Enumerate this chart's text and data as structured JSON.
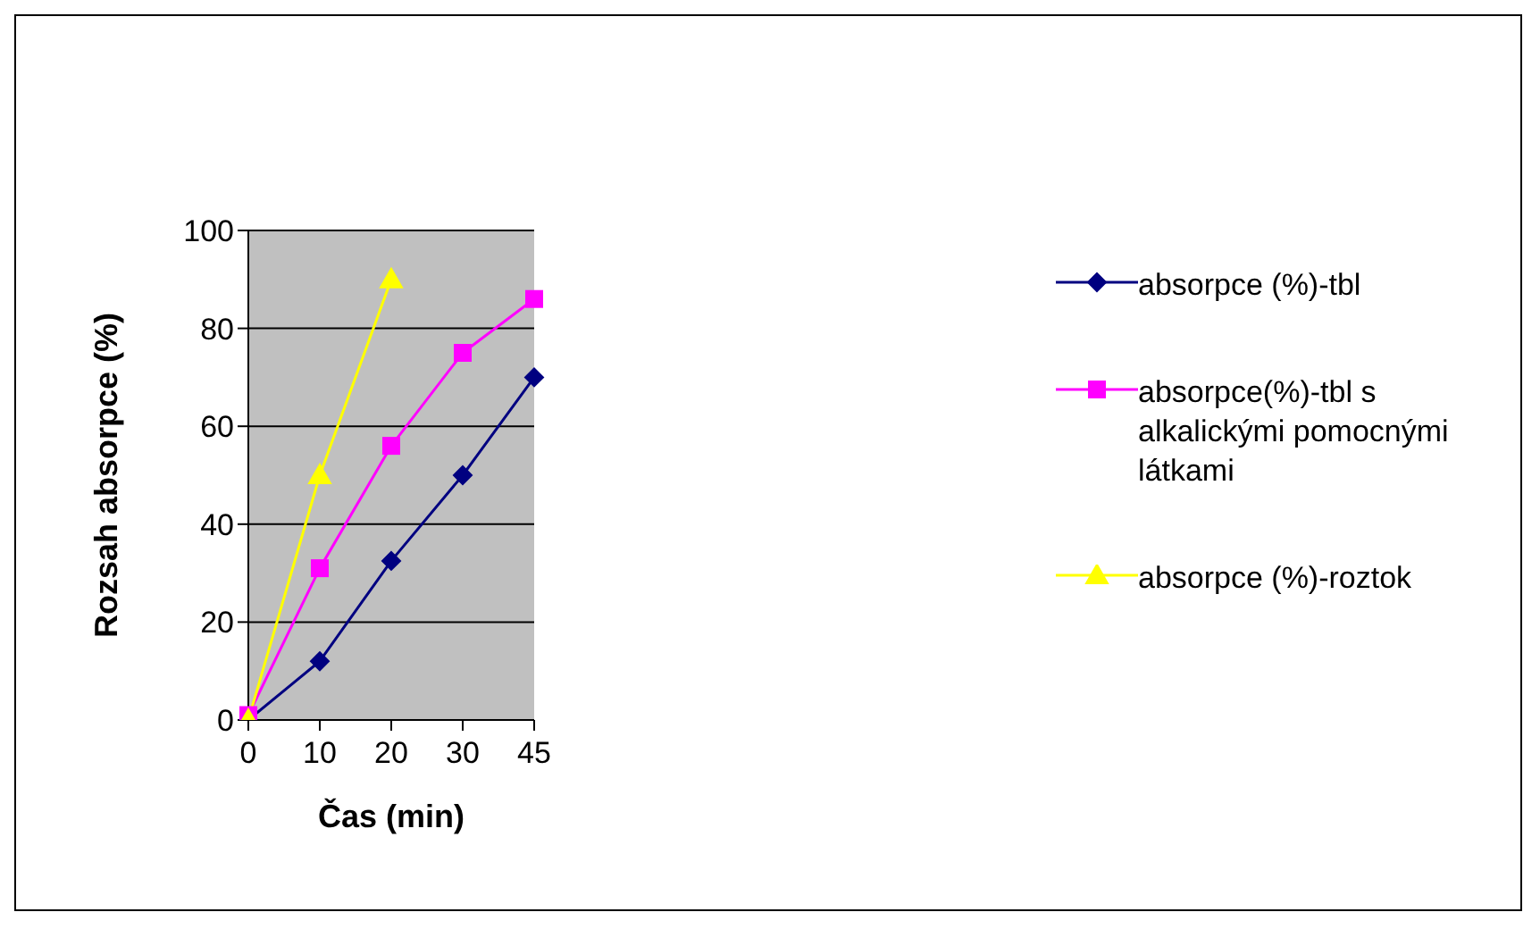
{
  "chart_data": {
    "type": "line",
    "xlabel": "Čas (min)",
    "ylabel": "Rozsah absorpce (%)",
    "categories": [
      "0",
      "10",
      "20",
      "30",
      "45"
    ],
    "series": [
      {
        "name": "absorpce (%)-tbl",
        "color": "#000080",
        "marker": "diamond",
        "values": [
          0,
          12,
          32.5,
          50,
          70
        ]
      },
      {
        "name": "absorpce(%)-tbl s alkalickými pomocnými látkami",
        "color": "#ff00ff",
        "marker": "square",
        "values": [
          1,
          31,
          56,
          75,
          86
        ]
      },
      {
        "name": "absorpce (%)-roztok",
        "color": "#ffff00",
        "marker": "triangle",
        "values": [
          0,
          50,
          90,
          null,
          null
        ]
      }
    ],
    "ylim": [
      0,
      100
    ],
    "yticks": [
      0,
      20,
      40,
      60,
      80,
      100
    ],
    "grid": "y",
    "legend": "right"
  }
}
